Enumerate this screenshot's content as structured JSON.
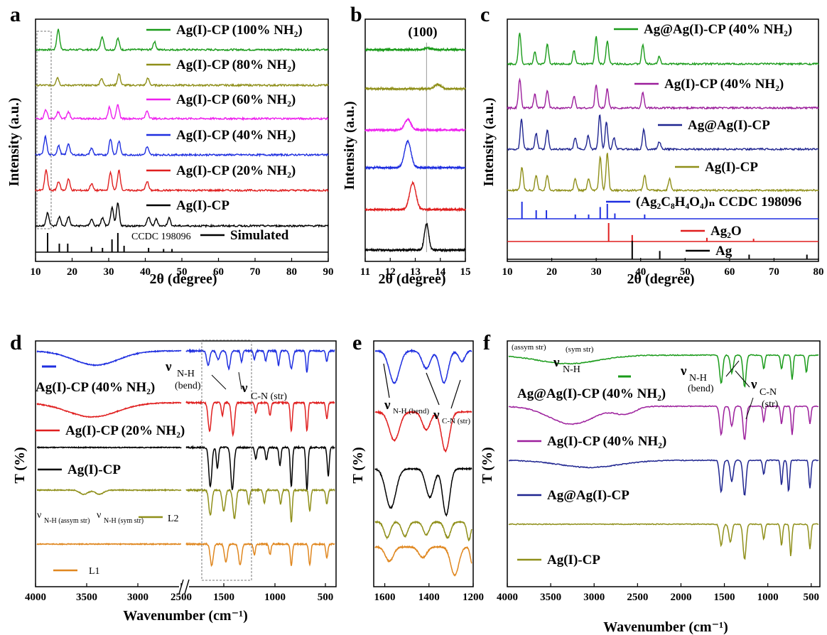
{
  "chart_data": [
    {
      "panel": "a",
      "type": "line",
      "xlabel": "2θ (degree)",
      "ylabel": "Intensity (a.u.)",
      "xlim": [
        10,
        90
      ],
      "xticks": [
        "10",
        "20",
        "30",
        "40",
        "50",
        "60",
        "70",
        "80",
        "90"
      ],
      "series": [
        {
          "name": "Ag(I)-CP (100% NH₂)",
          "color": "#1a9b1a",
          "peaks": [
            [
              16.2,
              0.9
            ],
            [
              28.2,
              0.6
            ],
            [
              32.5,
              0.5
            ],
            [
              42.5,
              0.35
            ]
          ]
        },
        {
          "name": "Ag(I)-CP (80% NH₂)",
          "color": "#8f8f19",
          "peaks": [
            [
              16.0,
              0.35
            ],
            [
              28.0,
              0.3
            ],
            [
              32.8,
              0.5
            ],
            [
              40.7,
              0.3
            ]
          ]
        },
        {
          "name": "Ag(I)-CP (60% NH₂)",
          "color": "#ee1fee",
          "peaks": [
            [
              12.8,
              0.4
            ],
            [
              16.2,
              0.3
            ],
            [
              19.0,
              0.3
            ],
            [
              30.2,
              0.5
            ],
            [
              32.5,
              0.6
            ],
            [
              40.5,
              0.35
            ]
          ]
        },
        {
          "name": "Ag(I)-CP (40% NH₂)",
          "color": "#1f2fe0",
          "peaks": [
            [
              12.7,
              0.8
            ],
            [
              16.3,
              0.4
            ],
            [
              19.0,
              0.5
            ],
            [
              25.3,
              0.3
            ],
            [
              30.5,
              0.7
            ],
            [
              32.8,
              0.6
            ],
            [
              40.5,
              0.35
            ]
          ]
        },
        {
          "name": "Ag(I)-CP (20% NH₂)",
          "color": "#e01f1f",
          "peaks": [
            [
              12.9,
              0.9
            ],
            [
              16.3,
              0.4
            ],
            [
              19.0,
              0.5
            ],
            [
              25.3,
              0.3
            ],
            [
              30.5,
              0.8
            ],
            [
              32.8,
              0.9
            ],
            [
              40.5,
              0.4
            ]
          ]
        },
        {
          "name": "Ag(I)-CP",
          "color": "#000000",
          "peaks": [
            [
              13.3,
              0.6
            ],
            [
              16.5,
              0.4
            ],
            [
              19.0,
              0.4
            ],
            [
              25.3,
              0.3
            ],
            [
              28.3,
              0.35
            ],
            [
              30.9,
              0.8
            ],
            [
              32.5,
              1.0
            ],
            [
              40.9,
              0.4
            ],
            [
              43.0,
              0.3
            ],
            [
              46.5,
              0.35
            ]
          ]
        },
        {
          "name": "Simulated",
          "color": "#000000",
          "peaks": [
            [
              13.3,
              0.9
            ],
            [
              16.5,
              0.4
            ],
            [
              18.8,
              0.4
            ],
            [
              25.3,
              0.25
            ],
            [
              28.3,
              0.2
            ],
            [
              30.9,
              0.6
            ],
            [
              32.5,
              0.9
            ],
            [
              34.2,
              0.3
            ],
            [
              40.9,
              0.2
            ],
            [
              45.0,
              0.15
            ],
            [
              47.3,
              0.15
            ]
          ]
        }
      ],
      "annotations": [
        "CCDC 198096"
      ]
    },
    {
      "panel": "b",
      "type": "line",
      "xlabel": "2θ (degree)",
      "ylabel": "Intensity (a.u.)",
      "xlim": [
        11,
        15
      ],
      "xticks": [
        "11",
        "12",
        "13",
        "14",
        "15"
      ],
      "peak_label": "(100)",
      "series": [
        {
          "color": "#1a9b1a",
          "peak": [
            13.5,
            0.05
          ]
        },
        {
          "color": "#8f8f19",
          "peak": [
            13.9,
            0.12
          ]
        },
        {
          "color": "#ee1fee",
          "peak": [
            12.7,
            0.3
          ]
        },
        {
          "color": "#1f2fe0",
          "peak": [
            12.7,
            0.75
          ]
        },
        {
          "color": "#e01f1f",
          "peak": [
            12.9,
            0.75
          ]
        },
        {
          "color": "#000000",
          "peak": [
            13.45,
            0.75
          ]
        }
      ]
    },
    {
      "panel": "c",
      "type": "line",
      "xlabel": "2θ (degree)",
      "ylabel": "Intensity (a.u.)",
      "xlim": [
        10,
        80
      ],
      "xticks": [
        "10",
        "20",
        "30",
        "40",
        "50",
        "60",
        "70",
        "80"
      ],
      "series": [
        {
          "name": "Ag@Ag(I)-CP (40% NH₂)",
          "color": "#1a9b1a",
          "peaks": [
            [
              12.8,
              0.8
            ],
            [
              16.2,
              0.3
            ],
            [
              19.0,
              0.5
            ],
            [
              25.0,
              0.35
            ],
            [
              30.0,
              0.7
            ],
            [
              32.5,
              0.6
            ],
            [
              40.5,
              0.5
            ],
            [
              44.2,
              0.2
            ]
          ]
        },
        {
          "name": "Ag(I)-CP (40% NH₂)",
          "color": "#9c1f9c",
          "peaks": [
            [
              12.8,
              0.75
            ],
            [
              16.2,
              0.35
            ],
            [
              19.0,
              0.45
            ],
            [
              25.0,
              0.3
            ],
            [
              30.0,
              0.6
            ],
            [
              32.5,
              0.5
            ],
            [
              40.5,
              0.4
            ]
          ]
        },
        {
          "name": "Ag@Ag(I)-CP",
          "color": "#1f2590",
          "peaks": [
            [
              13.2,
              0.8
            ],
            [
              16.5,
              0.4
            ],
            [
              19.0,
              0.5
            ],
            [
              25.3,
              0.3
            ],
            [
              28.2,
              0.35
            ],
            [
              30.8,
              0.9
            ],
            [
              32.3,
              0.7
            ],
            [
              34.0,
              0.3
            ],
            [
              40.7,
              0.5
            ],
            [
              44.2,
              0.2
            ]
          ]
        },
        {
          "name": "Ag(I)-CP",
          "color": "#8f8f19",
          "peaks": [
            [
              13.3,
              0.6
            ],
            [
              16.5,
              0.4
            ],
            [
              19.0,
              0.4
            ],
            [
              25.3,
              0.3
            ],
            [
              28.3,
              0.3
            ],
            [
              30.9,
              0.85
            ],
            [
              32.5,
              0.95
            ],
            [
              40.9,
              0.4
            ],
            [
              46.5,
              0.3
            ]
          ]
        },
        {
          "name": "(Ag₂C₈H₄O₄)ₙ CCDC 198096",
          "color": "#1f2fe0",
          "peaks": [
            [
              13.3,
              0.8
            ],
            [
              16.5,
              0.4
            ],
            [
              18.8,
              0.4
            ],
            [
              25.3,
              0.2
            ],
            [
              28.3,
              0.2
            ],
            [
              30.9,
              0.55
            ],
            [
              32.5,
              0.7
            ],
            [
              34.2,
              0.25
            ],
            [
              40.9,
              0.2
            ]
          ]
        },
        {
          "name": "Ag₂O",
          "color": "#e01f1f",
          "peaks": [
            [
              32.8,
              1.0
            ],
            [
              38.1,
              0.35
            ],
            [
              54.9,
              0.2
            ],
            [
              65.4,
              0.15
            ]
          ]
        },
        {
          "name": "Ag",
          "color": "#000000",
          "peaks": [
            [
              38.1,
              1.0
            ],
            [
              44.3,
              0.45
            ],
            [
              64.4,
              0.25
            ],
            [
              77.4,
              0.25
            ]
          ]
        }
      ]
    },
    {
      "panel": "d",
      "type": "line",
      "xlabel": "Wavenumber (cm⁻¹)",
      "ylabel": "T (%)",
      "xticks": [
        "4000",
        "3500",
        "3000",
        "2500",
        "1500",
        "1000",
        "500"
      ],
      "series": [
        {
          "name": "Ag(I)-CP (40% NH₂)",
          "color": "#1f2fe0"
        },
        {
          "name": "Ag(I)-CP (20% NH₂)",
          "color": "#e01f1f"
        },
        {
          "name": "Ag(I)-CP",
          "color": "#000000"
        },
        {
          "name": "L2",
          "color": "#8f8f19"
        },
        {
          "name": "L1",
          "color": "#e0871f"
        }
      ],
      "annotations": [
        "ν",
        "N-H",
        "(bend)",
        "ν",
        "C-N (str)",
        "ν",
        "N-H (assym str)",
        "ν",
        "N-H (sym str)"
      ]
    },
    {
      "panel": "e",
      "type": "line",
      "xlabel": "Wavenumber (cm⁻¹)",
      "ylabel": "T (%)",
      "xlim": [
        1650,
        1200
      ],
      "xticks": [
        "1600",
        "1400",
        "1200"
      ],
      "series": [
        {
          "color": "#1f2fe0"
        },
        {
          "color": "#e01f1f"
        },
        {
          "color": "#000000"
        },
        {
          "color": "#8f8f19"
        },
        {
          "color": "#e0871f"
        }
      ],
      "annotations": [
        "ν",
        "N-H (bend)",
        "ν",
        "C-N (str)"
      ]
    },
    {
      "panel": "f",
      "type": "line",
      "xlabel": "Wavenumber (cm⁻¹)",
      "ylabel": "T (%)",
      "xlim": [
        4000,
        400
      ],
      "xticks": [
        "4000",
        "3500",
        "3000",
        "2500",
        "2000",
        "1500",
        "1000",
        "500"
      ],
      "series": [
        {
          "name": "Ag@Ag(I)-CP (40% NH₂)",
          "color": "#1a9b1a"
        },
        {
          "name": "Ag(I)-CP (40% NH₂)",
          "color": "#9c1f9c"
        },
        {
          "name": "Ag@Ag(I)-CP",
          "color": "#1f2590"
        },
        {
          "name": "Ag(I)-CP",
          "color": "#8f8f19"
        }
      ],
      "annotations": [
        "(assym str)",
        "(sym str)",
        "ν",
        "N-H",
        "ν",
        "N-H",
        "(bend)",
        "ν",
        "C-N",
        "(str)"
      ]
    }
  ]
}
